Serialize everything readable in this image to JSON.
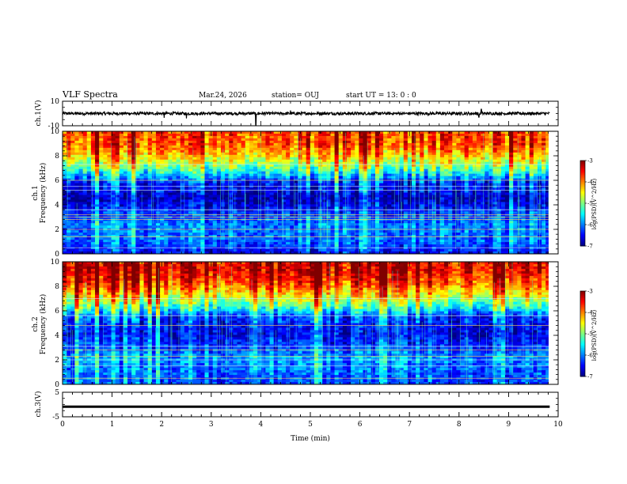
{
  "header": {
    "title": "VLF Spectra",
    "date": "Mar.24, 2026",
    "station": "station= OUJ",
    "start": "start  UT =   13: 0  : 0"
  },
  "chart_data": [
    {
      "type": "line",
      "name": "ch1-waveform",
      "ylabel": "ch.1(V)",
      "ylim": [
        -10,
        10
      ],
      "yticks": [
        "10",
        "-10"
      ],
      "xlim": [
        0,
        10
      ],
      "trace_level": 0,
      "trace_noise": 1.2,
      "spikes": [
        {
          "x": 2.05,
          "y": -3.5
        },
        {
          "x": 2.5,
          "y": -4.0
        },
        {
          "x": 3.9,
          "y": -9.5
        },
        {
          "x": 4.6,
          "y": 2.5
        },
        {
          "x": 8.45,
          "y": 3.5
        },
        {
          "x": 8.4,
          "y": -3.0
        }
      ]
    },
    {
      "type": "heatmap",
      "name": "ch1-spectrogram",
      "ylabel": "Frequency (kHz)",
      "channel_label": "ch.1",
      "ylim": [
        0,
        10
      ],
      "yticks": [
        "0",
        "2",
        "4",
        "6",
        "8",
        "10"
      ],
      "xlim": [
        0,
        9.83
      ],
      "colorbar": {
        "label": "log(PSD)(V^2/Hz)",
        "range": [
          -7,
          -3
        ],
        "ticks": [
          "-3",
          "-4",
          "-5",
          "-6",
          "-7"
        ]
      },
      "bands": [
        {
          "f": 9.0,
          "v": -3.8
        },
        {
          "f": 8.0,
          "v": -4.3
        },
        {
          "f": 7.2,
          "v": -4.9
        },
        {
          "f": 6.5,
          "v": -5.6
        },
        {
          "f": 5.8,
          "v": -6.4
        },
        {
          "f": 4.5,
          "v": -6.8
        },
        {
          "f": 3.3,
          "v": -6.3
        },
        {
          "f": 2.3,
          "v": -6.0
        },
        {
          "f": 1.0,
          "v": -6.1
        },
        {
          "f": 0.2,
          "v": -6.5
        }
      ],
      "lines_khz": [
        0.5,
        1.4,
        2.0,
        2.8,
        3.0,
        3.2,
        3.6,
        5.2,
        5.5,
        6.0,
        7.3
      ]
    },
    {
      "type": "heatmap",
      "name": "ch2-spectrogram",
      "ylabel": "Frequency (kHz)",
      "channel_label": "ch.2",
      "ylim": [
        0,
        10
      ],
      "yticks": [
        "0",
        "2",
        "4",
        "6",
        "8",
        "10"
      ],
      "xlim": [
        0,
        9.83
      ],
      "colorbar": {
        "label": "log(PSD)(V^2/Hz)",
        "range": [
          -7,
          -3
        ],
        "ticks": [
          "-3",
          "-4",
          "-5",
          "-6",
          "-7"
        ]
      },
      "bands": [
        {
          "f": 9.2,
          "v": -3.4
        },
        {
          "f": 8.2,
          "v": -3.8
        },
        {
          "f": 7.2,
          "v": -4.5
        },
        {
          "f": 6.3,
          "v": -5.3
        },
        {
          "f": 5.5,
          "v": -6.3
        },
        {
          "f": 4.2,
          "v": -6.6
        },
        {
          "f": 3.0,
          "v": -6.3
        },
        {
          "f": 2.2,
          "v": -5.9
        },
        {
          "f": 1.2,
          "v": -6.1
        },
        {
          "f": 0.3,
          "v": -6.2
        }
      ],
      "lines_khz": [
        0.5,
        1.5,
        2.0,
        2.3,
        2.8,
        3.1,
        4.8,
        5.6,
        7.0
      ]
    },
    {
      "type": "line",
      "name": "ch3-waveform",
      "ylabel": "ch.3(V)",
      "ylim": [
        -5,
        5
      ],
      "yticks": [
        "5",
        "-5"
      ],
      "xlim": [
        0,
        9.83
      ],
      "trace_level": -0.7,
      "trace_noise": 0.15
    }
  ],
  "xaxis": {
    "label": "Time (min)",
    "ticks": [
      "0",
      "1",
      "2",
      "3",
      "4",
      "5",
      "6",
      "7",
      "8",
      "9",
      "10"
    ]
  }
}
